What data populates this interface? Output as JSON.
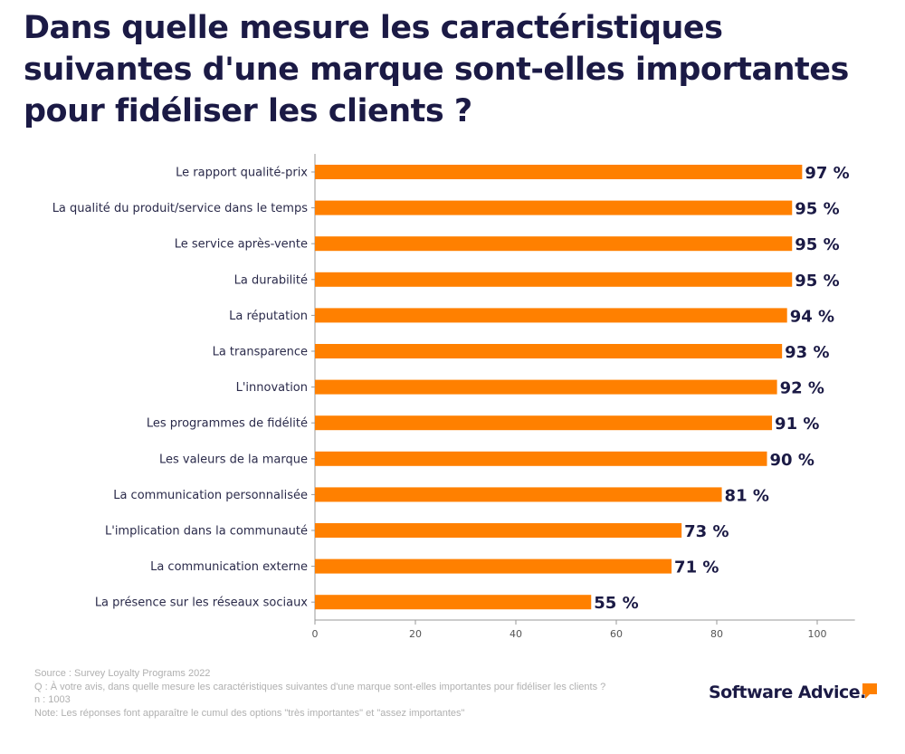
{
  "title": "Dans quelle mesure les caractéristiques suivantes d'une marque sont-elles importantes pour fidéliser les clients ?",
  "chart_data": {
    "type": "bar",
    "orientation": "horizontal",
    "categories": [
      "Le rapport qualité-prix",
      "La qualité du produit/service dans le temps",
      "Le service après-vente",
      "La durabilité",
      "La réputation",
      "La transparence",
      "L'innovation",
      "Les programmes de fidélité",
      "Les valeurs de la marque",
      "La communication personnalisée",
      "L'implication dans la communauté",
      "La communication externe",
      "La présence sur les réseaux sociaux"
    ],
    "values": [
      97,
      95,
      95,
      95,
      94,
      93,
      92,
      91,
      90,
      81,
      73,
      71,
      55
    ],
    "data_labels": [
      "97 %",
      "95 %",
      "95 %",
      "95 %",
      "94 %",
      "93 %",
      "92 %",
      "91 %",
      "90 %",
      "81 %",
      "73 %",
      "71 %",
      "55 %"
    ],
    "xticks": [
      "0",
      "20",
      "40",
      "60",
      "80",
      "100"
    ],
    "xlim": [
      0,
      107.5
    ],
    "grid": false,
    "bar_color": "#ff8000",
    "label_color": "#1b1a45"
  },
  "footer": {
    "source": "Source : Survey Loyalty Programs 2022",
    "question": "Q : À votre avis, dans quelle mesure les caractéristiques suivantes d'une marque sont-elles importantes pour fidéliser les clients ?",
    "n": "n :  1003",
    "note": "Note: Les réponses font apparaître le cumul des options \"très importantes\" et \"assez importantes\""
  },
  "logo": {
    "text": "Software Advice."
  }
}
